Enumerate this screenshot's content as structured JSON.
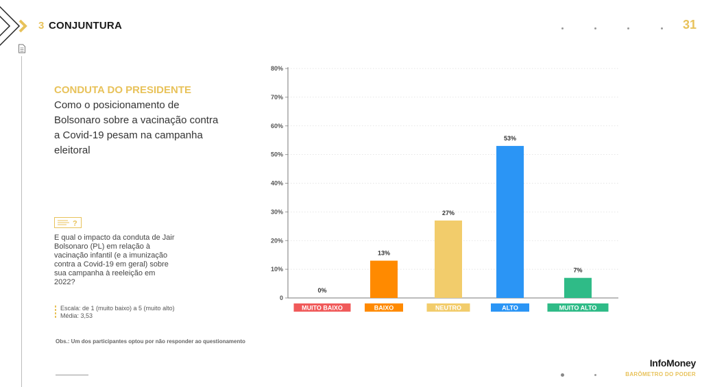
{
  "header": {
    "section_number": "3",
    "section_title": "CONJUNTURA",
    "page_number": "31"
  },
  "left": {
    "kicker": "CONDUTA DO PRESIDENTE",
    "question": "Como o posicionamento de Bolsonaro sobre a vacinação contra a Covid-19 pesam na campanha eleitoral",
    "survey_question": "E qual o impacto da conduta de Jair Bolsonaro (PL) em relação à vacinação infantil (e a imunização contra a Covid-19 em geral) sobre sua campanha à reeleição em 2022?",
    "scale": "Escala: de 1 (muito baixo) a 5 (muito alto)",
    "mean": "Média: 3,53",
    "obs": "Obs.: Um dos participantes optou por não responder ao questionamento",
    "qbox_mark": "?"
  },
  "brand": {
    "name": "InfoMoney",
    "subtitle": "BARÔMETRO DO PODER"
  },
  "icons": [
    "chevron-right-icon",
    "document-icon",
    "text-question-icon"
  ],
  "chart_data": {
    "type": "bar",
    "categories": [
      "MUITO BAIXO",
      "BAIXO",
      "NEUTRO",
      "ALTO",
      "MUITO ALTO"
    ],
    "values": [
      0,
      13,
      27,
      53,
      7
    ],
    "data_labels": [
      "0%",
      "13%",
      "27%",
      "53%",
      "7%"
    ],
    "colors": [
      "#f05a5a",
      "#ff8a00",
      "#f2cc6b",
      "#2b95f5",
      "#2fbb87"
    ],
    "ylim": [
      0,
      80
    ],
    "yticks": [
      0,
      10,
      20,
      30,
      40,
      50,
      60,
      70,
      80
    ],
    "ytick_labels": [
      "0",
      "10%",
      "20%",
      "30%",
      "40%",
      "50%",
      "60%",
      "70%",
      "80%"
    ],
    "grid": true,
    "legend": "none"
  }
}
